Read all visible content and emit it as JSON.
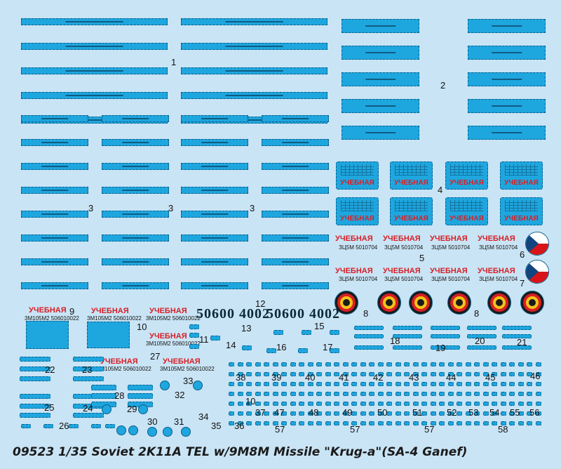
{
  "footer": {
    "title": "09523 1/35 Soviet 2K11A  TEL w/9M8M Missile \"Krug-a\"(SA-4 Ganef)"
  },
  "numbers": {
    "n1": "1",
    "n2": "2",
    "n3a": "3",
    "n3b": "3",
    "n3c": "3",
    "n4": "4",
    "n5": "5",
    "n6": "6",
    "n7": "7",
    "n8a": "8",
    "n8b": "8",
    "n9": "9",
    "n10a": "10",
    "n10b": "10",
    "n11": "11",
    "n12": "12",
    "n13": "13",
    "n14": "14",
    "n15": "15",
    "n16": "16",
    "n17": "17",
    "n18": "18",
    "n19": "19",
    "n20": "20",
    "n21": "21",
    "n22": "22",
    "n23": "23",
    "n24": "24",
    "n25": "25",
    "n26": "26",
    "n27": "27",
    "n28": "28",
    "n29": "29",
    "n30": "30",
    "n31": "31",
    "n32": "32",
    "n33": "33",
    "n34": "34",
    "n35": "35",
    "n36": "36",
    "n37": "37",
    "n38": "38",
    "n39": "39",
    "n40": "40",
    "n41": "41",
    "n42": "42",
    "n43": "43",
    "n44": "44",
    "n45": "45",
    "n46": "46",
    "n47": "47",
    "n48": "48",
    "n49": "49",
    "n50": "50",
    "n51": "51",
    "n52": "52",
    "n53": "53",
    "n54": "54",
    "n55": "55",
    "n56": "56",
    "n57a": "57",
    "n57b": "57",
    "n57c": "57",
    "n58": "58"
  },
  "labels": {
    "ucheb": "УЧЕБНАЯ",
    "code_zcm": "ЗЦ5М 5010704",
    "code_3m105": "3М105М2 506010022",
    "plate_big": "50600 4002"
  },
  "colors": {
    "background": "#c9e4f5",
    "decal_blue": "#1ea6df",
    "red": "#d81f26"
  }
}
